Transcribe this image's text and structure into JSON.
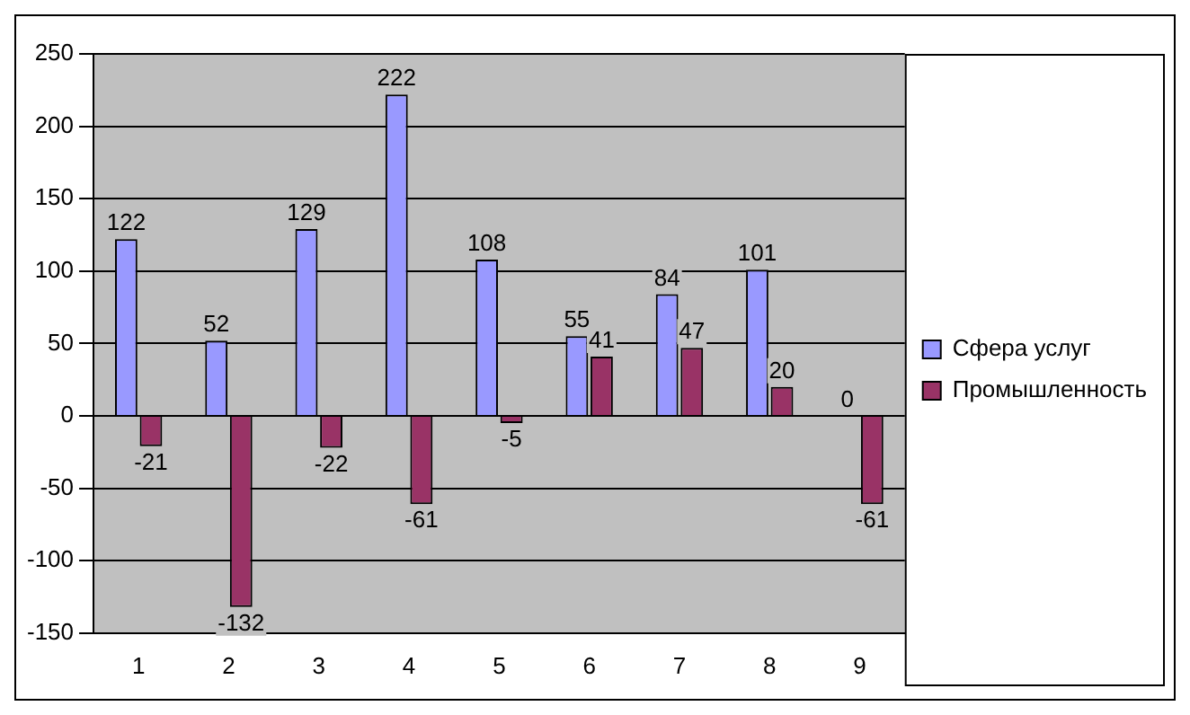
{
  "chart_data": {
    "type": "bar",
    "categories": [
      "1",
      "2",
      "3",
      "4",
      "5",
      "6",
      "7",
      "8",
      "9"
    ],
    "series": [
      {
        "name": "Сфера услуг",
        "color": "#9999ff",
        "values": [
          122,
          52,
          129,
          222,
          108,
          55,
          84,
          101,
          0
        ]
      },
      {
        "name": "Промышленность",
        "color": "#993366",
        "values": [
          -21,
          -132,
          -22,
          -61,
          -5,
          41,
          47,
          20,
          -61
        ]
      }
    ],
    "ylim": [
      -150,
      250
    ],
    "yticks": [
      -150,
      -100,
      -50,
      0,
      50,
      100,
      150,
      200,
      250
    ],
    "grid": "y",
    "legend": "right",
    "data_labels": true
  }
}
